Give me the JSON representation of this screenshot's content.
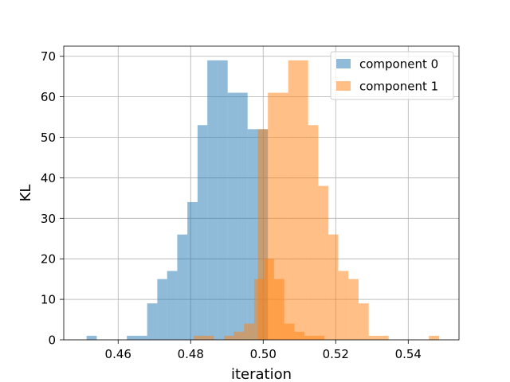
{
  "chart_data": {
    "type": "bar",
    "subtype": "histogram",
    "title": "",
    "xlabel": "iteration",
    "ylabel": "KL",
    "xlim": [
      0.445,
      0.554
    ],
    "ylim": [
      0,
      72.5
    ],
    "xticks": [
      0.46,
      0.48,
      0.5,
      0.52,
      0.54
    ],
    "xtick_labels": [
      "0.46",
      "0.48",
      "0.50",
      "0.52",
      "0.54"
    ],
    "yticks": [
      0,
      10,
      20,
      30,
      40,
      50,
      60,
      70
    ],
    "ytick_labels": [
      "0",
      "10",
      "20",
      "30",
      "40",
      "50",
      "60",
      "70"
    ],
    "grid": true,
    "legend_position": "top-right",
    "series": [
      {
        "name": "component 0",
        "color": "#1f77b4",
        "alpha": 0.5,
        "bin_edges": [
          0.4513,
          0.4541,
          0.4569,
          0.4597,
          0.4624,
          0.4652,
          0.468,
          0.4708,
          0.4735,
          0.4763,
          0.4791,
          0.4819,
          0.4846,
          0.4874,
          0.4902,
          0.493,
          0.4957,
          0.4985,
          0.5013
        ],
        "counts": [
          1,
          0,
          0,
          0,
          1,
          1,
          9,
          15,
          17,
          26,
          34,
          53,
          69,
          69,
          61,
          61,
          52,
          52
        ]
      },
      {
        "name": "component 1",
        "color": "#ff7f0e",
        "alpha": 0.5,
        "bin_edges": [
          0.4985,
          0.5013,
          0.5041,
          0.5069,
          0.5096,
          0.5124,
          0.5152,
          0.518,
          0.5207,
          0.5235,
          0.5263,
          0.5291,
          0.5319,
          0.5346,
          0.5374,
          0.5402,
          0.543,
          0.5457,
          0.5485
        ],
        "counts": [
          52,
          61,
          61,
          69,
          69,
          53,
          38,
          26,
          17,
          15,
          9,
          1,
          1,
          0,
          0,
          0,
          0,
          1
        ]
      },
      {
        "name": "component 1",
        "color": "#ff7f0e",
        "alpha": 0.5,
        "bin_edges": [
          0.4808,
          0.4836,
          0.4864,
          0.4892,
          0.4919,
          0.4947,
          0.4975,
          0.5003,
          0.503,
          0.5058,
          0.5086,
          0.5114,
          0.5141,
          0.5169
        ],
        "counts": [
          1,
          1,
          0,
          1,
          2,
          4,
          15,
          20,
          15,
          4,
          2,
          1,
          1
        ]
      }
    ]
  }
}
